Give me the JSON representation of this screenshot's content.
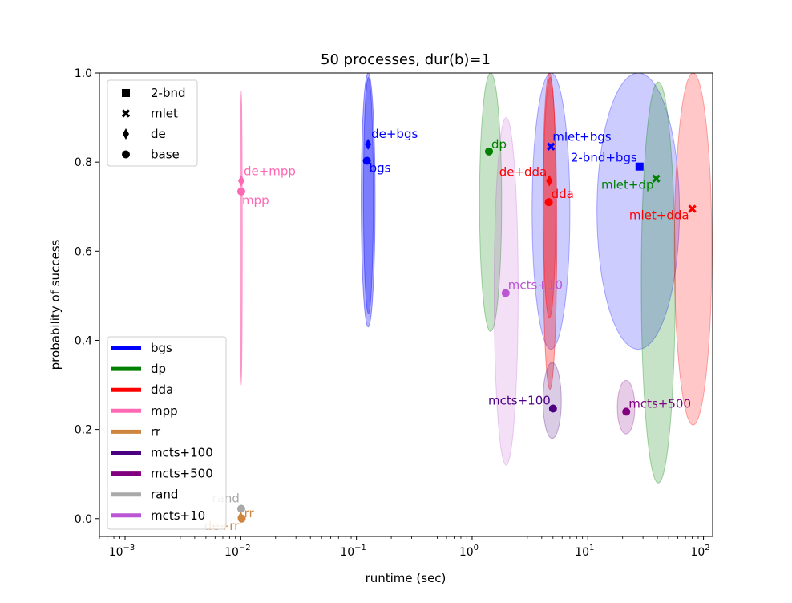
{
  "chart_data": {
    "type": "scatter",
    "title": "50 processes, dur(b)=1",
    "xlabel": "runtime (sec)",
    "ylabel": "probability of success",
    "xscale": "log",
    "xlim": [
      0.0006,
      120
    ],
    "ylim": [
      -0.04,
      1.0
    ],
    "xticks": [
      {
        "value": 0.001,
        "base": "10",
        "exp": "−3"
      },
      {
        "value": 0.01,
        "base": "10",
        "exp": "−2"
      },
      {
        "value": 0.1,
        "base": "10",
        "exp": "−1"
      },
      {
        "value": 1,
        "base": "10",
        "exp": "0"
      },
      {
        "value": 10,
        "base": "10",
        "exp": "1"
      },
      {
        "value": 100,
        "base": "10",
        "exp": "2"
      }
    ],
    "yticks": [
      {
        "value": 0.0,
        "label": "0.0"
      },
      {
        "value": 0.2,
        "label": "0.2"
      },
      {
        "value": 0.4,
        "label": "0.4"
      },
      {
        "value": 0.6,
        "label": "0.6"
      },
      {
        "value": 0.8,
        "label": "0.8"
      },
      {
        "value": 1.0,
        "label": "1.0"
      }
    ],
    "colors": {
      "bgs": "#0000ff",
      "dp": "#008000",
      "dda": "#ff0000",
      "mpp": "#ff69b4",
      "rr": "#cd853f",
      "mcts+100": "#4b0082",
      "mcts+500": "#800080",
      "rand": "#a9a9a9",
      "mcts+10": "#ba55d3"
    },
    "legend_markers": {
      "location": "upper-left",
      "entries": [
        {
          "label": "2-bnd",
          "marker": "square"
        },
        {
          "label": "mlet",
          "marker": "x"
        },
        {
          "label": "de",
          "marker": "diamond"
        },
        {
          "label": "base",
          "marker": "circle"
        }
      ]
    },
    "legend_colors": {
      "location": "lower-left",
      "entries": [
        {
          "label": "bgs",
          "color": "#0000ff"
        },
        {
          "label": "dp",
          "color": "#008000"
        },
        {
          "label": "dda",
          "color": "#ff0000"
        },
        {
          "label": "mpp",
          "color": "#ff69b4"
        },
        {
          "label": "rr",
          "color": "#cd853f"
        },
        {
          "label": "mcts+100",
          "color": "#4b0082"
        },
        {
          "label": "mcts+500",
          "color": "#800080"
        },
        {
          "label": "rand",
          "color": "#a9a9a9"
        },
        {
          "label": "mcts+10",
          "color": "#ba55d3"
        }
      ]
    },
    "ellipses": [
      {
        "name": "mpp",
        "color": "#ff69b4",
        "x": 0.0101,
        "y": 0.63,
        "xlo": 0.0099,
        "xhi": 0.0103,
        "ylo": 0.3,
        "yhi": 0.96,
        "opacity": 0.55
      },
      {
        "name": "bgs",
        "color": "#0000ff",
        "x": 0.126,
        "y": 0.71,
        "xlo": 0.11,
        "xhi": 0.145,
        "ylo": 0.43,
        "yhi": 1.0,
        "opacity": 0.3
      },
      {
        "name": "bgs-de",
        "color": "#0000ff",
        "x": 0.129,
        "y": 0.72,
        "xlo": 0.115,
        "xhi": 0.14,
        "ylo": 0.46,
        "yhi": 0.99,
        "opacity": 0.3
      },
      {
        "name": "dp",
        "color": "#008000",
        "x": 1.45,
        "y": 0.67,
        "xlo": 1.16,
        "xhi": 1.8,
        "ylo": 0.42,
        "yhi": 1.0,
        "opacity": 0.22
      },
      {
        "name": "mcts+10",
        "color": "#ba55d3",
        "x": 1.97,
        "y": 0.51,
        "xlo": 1.55,
        "xhi": 2.5,
        "ylo": 0.12,
        "yhi": 0.9,
        "opacity": 0.18
      },
      {
        "name": "mlet+bgs",
        "color": "#0000ff",
        "x": 4.8,
        "y": 0.69,
        "xlo": 3.3,
        "xhi": 7.0,
        "ylo": 0.38,
        "yhi": 1.0,
        "opacity": 0.2
      },
      {
        "name": "dda",
        "color": "#ff0000",
        "x": 4.7,
        "y": 0.64,
        "xlo": 4.1,
        "xhi": 5.4,
        "ylo": 0.29,
        "yhi": 0.99,
        "opacity": 0.3
      },
      {
        "name": "dda-de",
        "color": "#ff0000",
        "x": 4.7,
        "y": 0.72,
        "xlo": 4.1,
        "xhi": 5.3,
        "ylo": 0.45,
        "yhi": 1.0,
        "opacity": 0.3
      },
      {
        "name": "mcts+100",
        "color": "#4b0082",
        "x": 4.9,
        "y": 0.26,
        "xlo": 4.1,
        "xhi": 5.9,
        "ylo": 0.18,
        "yhi": 0.35,
        "opacity": 0.2
      },
      {
        "name": "mcts+500",
        "color": "#800080",
        "x": 21.5,
        "y": 0.25,
        "xlo": 18.0,
        "xhi": 25.5,
        "ylo": 0.19,
        "yhi": 0.31,
        "opacity": 0.2
      },
      {
        "name": "2-bnd+bgs",
        "color": "#0000ff",
        "x": 28.0,
        "y": 0.69,
        "xlo": 12.0,
        "xhi": 62.0,
        "ylo": 0.38,
        "yhi": 1.0,
        "opacity": 0.2
      },
      {
        "name": "mlet+dp",
        "color": "#008000",
        "x": 41.0,
        "y": 0.52,
        "xlo": 29.0,
        "xhi": 57.0,
        "ylo": 0.08,
        "yhi": 0.98,
        "opacity": 0.22
      },
      {
        "name": "mlet+dda",
        "color": "#ff0000",
        "x": 85.0,
        "y": 0.63,
        "xlo": 56.0,
        "xhi": 118.0,
        "ylo": 0.21,
        "yhi": 1.0,
        "opacity": 0.22
      }
    ],
    "points": [
      {
        "label": "de+bgs",
        "color": "#0000ff",
        "marker": "diamond",
        "x": 0.126,
        "y": 0.84,
        "ldx": 4,
        "ldy": -8,
        "anchor": "start"
      },
      {
        "label": "bgs",
        "color": "#0000ff",
        "marker": "circle",
        "x": 0.123,
        "y": 0.803,
        "ldx": 3,
        "ldy": 14,
        "anchor": "start"
      },
      {
        "label": "de+mpp",
        "color": "#ff69b4",
        "marker": "diamond",
        "x": 0.0101,
        "y": 0.758,
        "ldx": 3,
        "ldy": -7,
        "anchor": "start"
      },
      {
        "label": "mpp",
        "color": "#ff69b4",
        "marker": "circle",
        "x": 0.0101,
        "y": 0.734,
        "ldx": 1,
        "ldy": 16,
        "anchor": "start"
      },
      {
        "label": "dp",
        "color": "#008000",
        "marker": "circle",
        "x": 1.4,
        "y": 0.824,
        "ldx": 3,
        "ldy": -4,
        "anchor": "start"
      },
      {
        "label": "mlet+bgs",
        "color": "#0000ff",
        "marker": "x",
        "x": 4.8,
        "y": 0.835,
        "ldx": 2,
        "ldy": -7,
        "anchor": "start"
      },
      {
        "label": "de+dda",
        "color": "#ff0000",
        "marker": "diamond",
        "x": 4.65,
        "y": 0.758,
        "ldx": -3,
        "ldy": -6,
        "anchor": "end"
      },
      {
        "label": "dda",
        "color": "#ff0000",
        "marker": "circle",
        "x": 4.6,
        "y": 0.71,
        "ldx": -3,
        "ldy": -5,
        "anchor": "start",
        "offx": 6
      },
      {
        "label": "2-bnd+bgs",
        "color": "#0000ff",
        "marker": "square",
        "x": 28.0,
        "y": 0.79,
        "ldx": -3,
        "ldy": -6,
        "anchor": "end"
      },
      {
        "label": "mlet+dp",
        "color": "#008000",
        "marker": "x",
        "x": 39.0,
        "y": 0.763,
        "ldx": -3,
        "ldy": 13,
        "anchor": "end"
      },
      {
        "label": "mlet+dda",
        "color": "#ff0000",
        "marker": "x",
        "x": 80.0,
        "y": 0.695,
        "ldx": -4,
        "ldy": 13,
        "anchor": "end"
      },
      {
        "label": "mcts+10",
        "color": "#ba55d3",
        "marker": "circle",
        "x": 1.95,
        "y": 0.506,
        "ldx": 3,
        "ldy": -5,
        "anchor": "start"
      },
      {
        "label": "mcts+100",
        "color": "#4b0082",
        "marker": "circle",
        "x": 5.0,
        "y": 0.247,
        "ldx": -3,
        "ldy": -5,
        "anchor": "end"
      },
      {
        "label": "mcts+500",
        "color": "#800080",
        "marker": "circle",
        "x": 21.5,
        "y": 0.24,
        "ldx": 3,
        "ldy": -5,
        "anchor": "start"
      },
      {
        "label": "rand",
        "color": "#a9a9a9",
        "marker": "circle",
        "x": 0.0101,
        "y": 0.022,
        "ldx": -2,
        "ldy": -8,
        "anchor": "end"
      },
      {
        "label": "rr",
        "color": "#cd853f",
        "marker": "circle",
        "x": 0.0102,
        "y": 0.0,
        "ldx": 3,
        "ldy": -2,
        "anchor": "start"
      },
      {
        "label": "de+rr",
        "color": "#cd853f",
        "marker": "diamond",
        "x": 0.01,
        "y": 0.003,
        "ldx": -2,
        "ldy": 16,
        "anchor": "end"
      }
    ]
  }
}
